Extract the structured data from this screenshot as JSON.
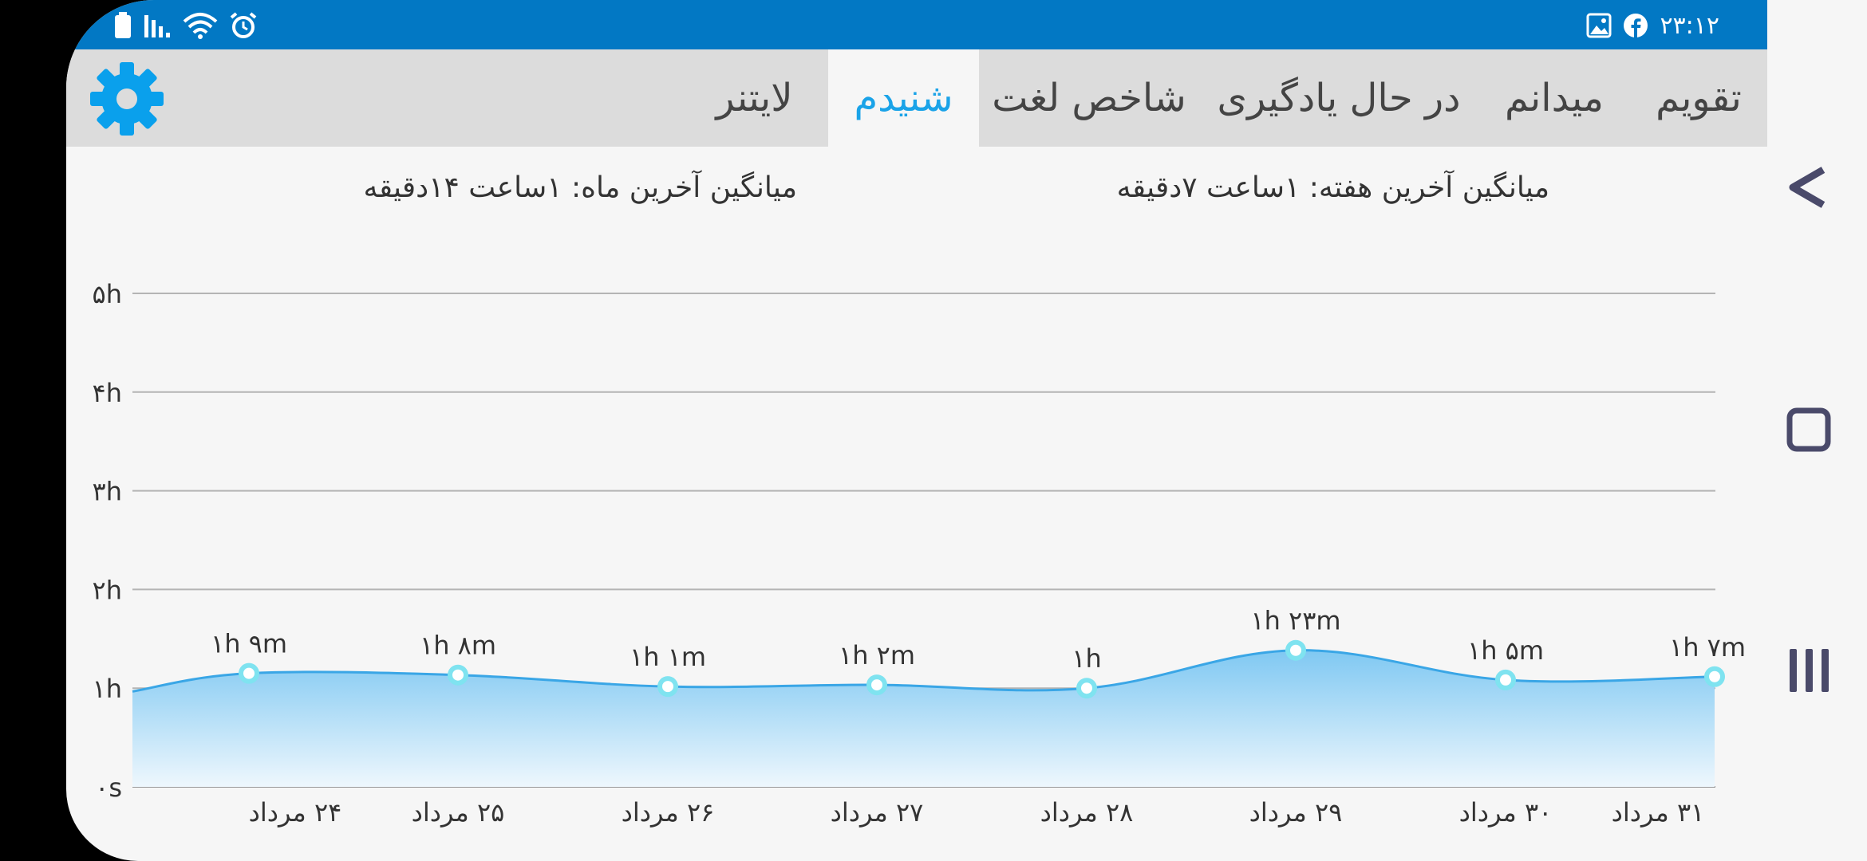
{
  "status_bar": {
    "time": "۲۳:۱۲",
    "left_icons": [
      "battery-icon",
      "signal-icon",
      "wifi-icon",
      "alarm-icon"
    ],
    "right_icons": [
      "image-icon",
      "facebook-icon"
    ],
    "background": "#0278c4"
  },
  "tabs": [
    {
      "label": "تقویم",
      "active": false
    },
    {
      "label": "میدانم",
      "active": false
    },
    {
      "label": "در حال یادگیری",
      "active": false
    },
    {
      "label": "شاخص لغت",
      "active": false
    },
    {
      "label": "شنیدم",
      "active": true
    },
    {
      "label": "لایتنر",
      "active": false
    }
  ],
  "settings_icon": "gear-icon",
  "averages": {
    "week": "میانگین آخرین هفته: ۱ساعت  ۷دقیقه",
    "month": "میانگین آخرین ماه: ۱ساعت  ۱۴دقیقه"
  },
  "accent_color": "#1aa3e8",
  "chart_data": {
    "type": "area",
    "x": [
      "۲۴ مرداد",
      "۲۵ مرداد",
      "۲۶ مرداد",
      "۲۷ مرداد",
      "۲۸ مرداد",
      "۲۹ مرداد",
      "۳۰ مرداد",
      "۳۱ مرداد"
    ],
    "values_minutes": [
      69,
      68,
      61,
      62,
      60,
      83,
      65,
      67
    ],
    "point_labels": [
      "۱h ۹m",
      "۱h ۸m",
      "۱h ۱m",
      "۱h ۲m",
      "۱h",
      "۱h ۲۳m",
      "۱h ۵m",
      "۱h ۷m"
    ],
    "y_ticks": [
      "۰s",
      "۱h",
      "۲h",
      "۳h",
      "۴h",
      "۵h"
    ],
    "ylim_minutes": [
      0,
      300
    ],
    "grid": true,
    "line_color": "#3aa6e6",
    "point_color": "#7fe3f0"
  },
  "nav_bar": {
    "icons": [
      "back-icon",
      "home-icon",
      "recents-icon"
    ]
  }
}
